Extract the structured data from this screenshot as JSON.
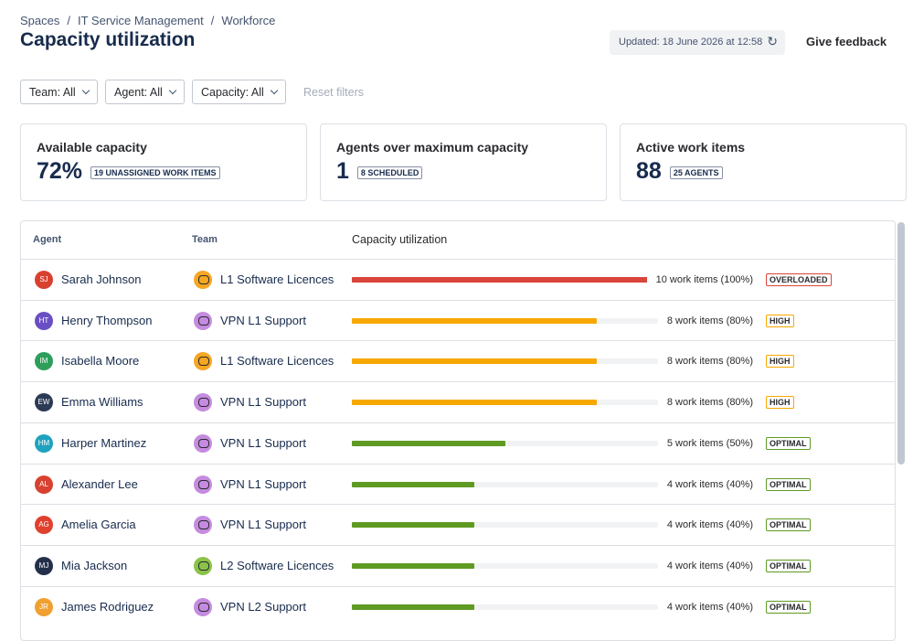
{
  "header": {
    "breadcrumb": [
      "Spaces",
      "IT Service Management",
      "Workforce"
    ],
    "breadcrumb_separator": "/",
    "title": "Capacity utilization",
    "updated": "Updated: 18 June 2026 at 12:58",
    "feedback": "Give feedback"
  },
  "filters": {
    "items": [
      "Team: All",
      "Agent: All",
      "Capacity: All"
    ],
    "reset": "Reset filters"
  },
  "cards": [
    {
      "title": "Available capacity",
      "value": "72%",
      "badge": "19 UNASSIGNED WORK ITEMS"
    },
    {
      "title": "Agents over maximum capacity",
      "value": "1",
      "badge": "8 SCHEDULED"
    },
    {
      "title": "Active work items",
      "value": "88",
      "badge": "25 AGENTS"
    }
  ],
  "table": {
    "columns": [
      "Agent",
      "Team",
      "Capacity utilization"
    ],
    "rows": [
      {
        "initials": "SJ",
        "avatar_color": "#d8412f",
        "agent": "Sarah Johnson",
        "team": "L1 Software Licences",
        "team_color": "#f5a623",
        "utilization": 100,
        "load_label": "10 work items (100%)",
        "status": "OVERLOADED",
        "color": "#d9453b"
      },
      {
        "initials": "HT",
        "avatar_color": "#6a4fc4",
        "agent": "Henry Thompson",
        "team": "VPN L1 Support",
        "team_color": "#c58be0",
        "utilization": 80,
        "load_label": "8 work items (80%)",
        "status": "HIGH",
        "color": "#f7a800"
      },
      {
        "initials": "IM",
        "avatar_color": "#2e9e5b",
        "agent": "Isabella Moore",
        "team": "L1 Software Licences",
        "team_color": "#f5a623",
        "utilization": 80,
        "load_label": "8 work items (80%)",
        "status": "HIGH",
        "color": "#f7a800"
      },
      {
        "initials": "EW",
        "avatar_color": "#2b3a55",
        "agent": "Emma Williams",
        "team": "VPN L1 Support",
        "team_color": "#c58be0",
        "utilization": 80,
        "load_label": "8 work items (80%)",
        "status": "HIGH",
        "color": "#f7a800"
      },
      {
        "initials": "HM",
        "avatar_color": "#1fa2bf",
        "agent": "Harper Martinez",
        "team": "VPN L1 Support",
        "team_color": "#c58be0",
        "utilization": 50,
        "load_label": "5 work items (50%)",
        "status": "OPTIMAL",
        "color": "#5f9a23"
      },
      {
        "initials": "AL",
        "avatar_color": "#d8412f",
        "agent": "Alexander Lee",
        "team": "VPN L1 Support",
        "team_color": "#c58be0",
        "utilization": 40,
        "load_label": "4 work items (40%)",
        "status": "OPTIMAL",
        "color": "#5f9a23"
      },
      {
        "initials": "AG",
        "avatar_color": "#e0402e",
        "agent": "Amelia Garcia",
        "team": "VPN L1 Support",
        "team_color": "#c58be0",
        "utilization": 40,
        "load_label": "4 work items (40%)",
        "status": "OPTIMAL",
        "color": "#5f9a23"
      },
      {
        "initials": "MJ",
        "avatar_color": "#24304a",
        "agent": "Mia Jackson",
        "team": "L2 Software Licences",
        "team_color": "#8bc34a",
        "utilization": 40,
        "load_label": "4 work items (40%)",
        "status": "OPTIMAL",
        "color": "#5f9a23"
      },
      {
        "initials": "JR",
        "avatar_color": "#f0a030",
        "agent": "James Rodriguez",
        "team": "VPN L2 Support",
        "team_color": "#c58be0",
        "utilization": 40,
        "load_label": "4 work items (40%)",
        "status": "OPTIMAL",
        "color": "#5f9a23"
      }
    ]
  }
}
